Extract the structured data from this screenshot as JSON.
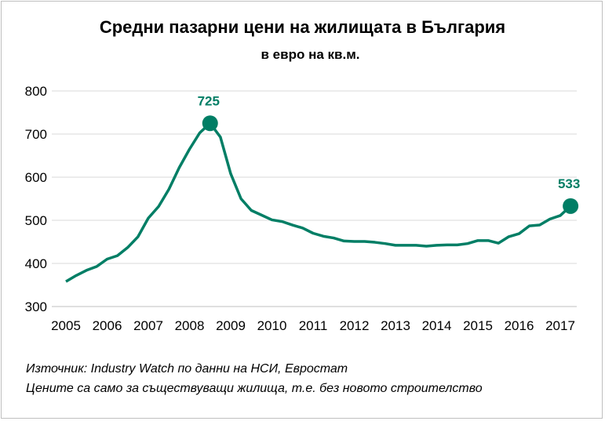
{
  "chart_data": {
    "type": "line",
    "title": "Средни пазарни цени на жилищата в България",
    "subtitle": "в евро на кв.м.",
    "xlabel": "",
    "ylabel": "",
    "ylim": [
      300,
      800
    ],
    "yticks": [
      "300",
      "400",
      "500",
      "600",
      "700",
      "800"
    ],
    "xticks": [
      "2005",
      "2006",
      "2007",
      "2008",
      "2009",
      "2010",
      "2011",
      "2012",
      "2013",
      "2014",
      "2015",
      "2016",
      "2017"
    ],
    "x_start": 2005,
    "x_step": 0.25,
    "grid": true,
    "series": [
      {
        "name": "Средни пазарни цени",
        "color": "#007E65",
        "values": [
          358,
          372,
          384,
          393,
          410,
          418,
          437,
          462,
          505,
          532,
          572,
          622,
          665,
          703,
          725,
          693,
          608,
          550,
          523,
          512,
          501,
          497,
          489,
          482,
          470,
          463,
          459,
          452,
          451,
          451,
          449,
          446,
          442,
          442,
          442,
          440,
          442,
          443,
          443,
          446,
          453,
          453,
          447,
          462,
          469,
          487,
          489,
          503,
          511,
          533
        ]
      }
    ],
    "annotations": [
      {
        "index": 14,
        "label": "725"
      },
      {
        "index": 49,
        "label": "533"
      }
    ]
  },
  "footer": {
    "source": "Източник: Industry Watch по данни на НСИ, Евростат",
    "note": "Цените са само за съществуващи жилища, т.е. без новото строителство"
  }
}
